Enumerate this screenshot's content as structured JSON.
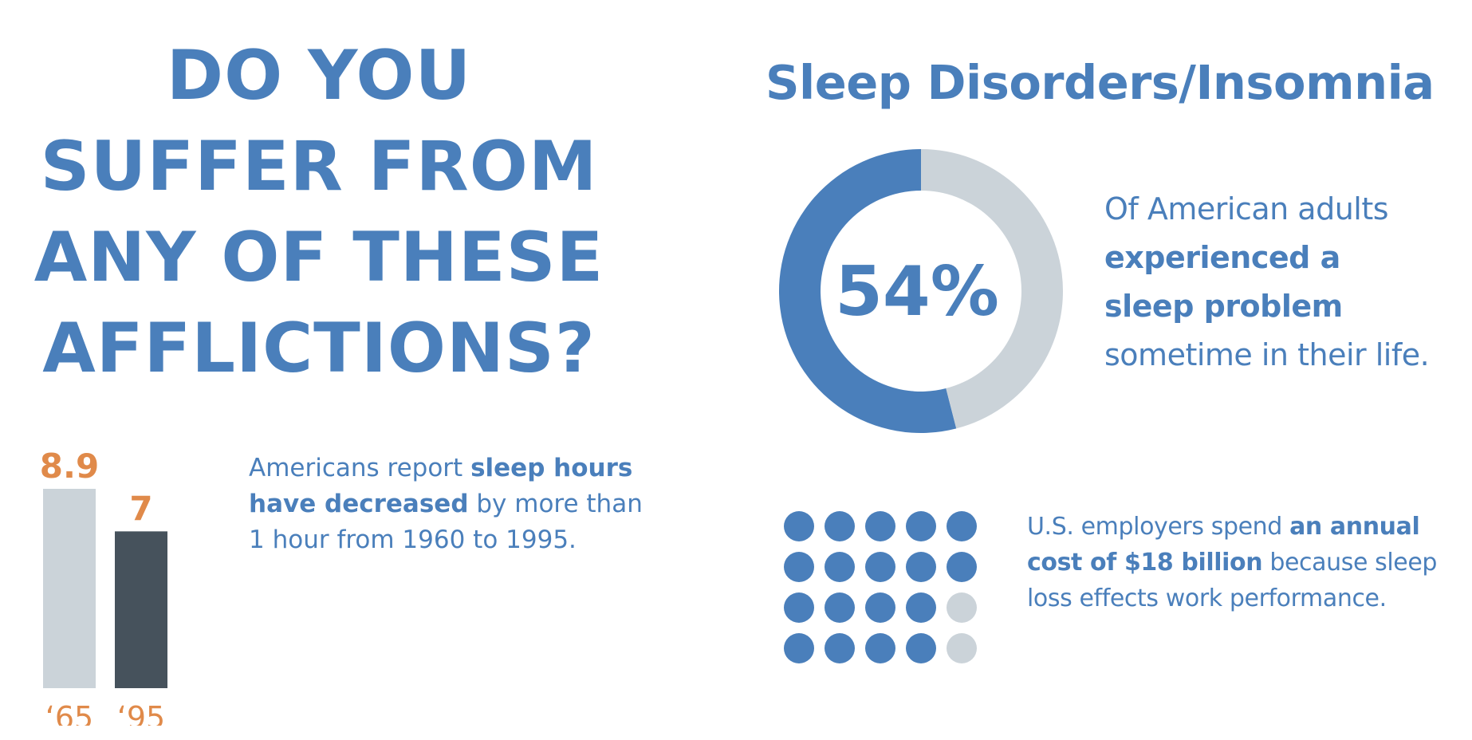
{
  "colors": {
    "blue": "#4a7fbb",
    "light_gray": "#cbd3d9",
    "dark_slate": "#46525c",
    "orange": "#e08a4a"
  },
  "headline": {
    "lines": [
      "DO YOU",
      "SUFFER FROM",
      "ANY OF THESE",
      "AFFLICTIONS?"
    ]
  },
  "section_title": "Sleep Disorders/Insomnia",
  "donut_stat": {
    "label": "54%",
    "text_line1": "Of American adults",
    "text_bold1": "experienced a",
    "text_bold2": "sleep problem",
    "text_line4": "sometime in their life."
  },
  "bars_stat": {
    "t1": "Americans report ",
    "b1": "sleep hours",
    "b2": "have decreased",
    "t2": " by more than",
    "t3": "1 hour from 1960 to 1995."
  },
  "dots_stat": {
    "t1": "U.S. employers spend ",
    "b1": "an annual",
    "b2": "cost of $18 billion",
    "t2": " because sleep",
    "t3": "loss effects work performance."
  },
  "chart_data": [
    {
      "type": "pie",
      "variant": "donut",
      "values": [
        54,
        46
      ],
      "center_label": "54%"
    },
    {
      "type": "bar",
      "categories": [
        "‘65",
        "‘95"
      ],
      "values": [
        8.9,
        7
      ],
      "value_labels": [
        "8.9",
        "7"
      ],
      "bar_colors": [
        "#cbd3d9",
        "#46525c"
      ]
    },
    {
      "type": "table",
      "variant": "dot-matrix",
      "rows": 4,
      "cols": 5,
      "filled": 18,
      "total": 20
    }
  ]
}
